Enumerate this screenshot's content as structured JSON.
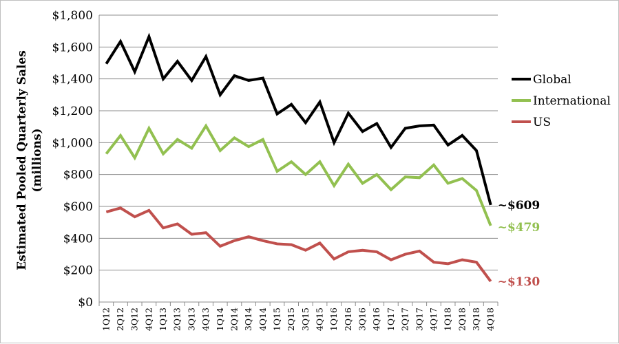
{
  "chart_data": {
    "type": "line",
    "title": "",
    "xlabel": "",
    "ylabel": "Estimated Pooled Quarterly Sales",
    "ylabel_line2": "(millions)",
    "ylim": [
      0,
      1800
    ],
    "yticks": [
      0,
      200,
      400,
      600,
      800,
      1000,
      1200,
      1400,
      1600,
      1800
    ],
    "ytick_labels": [
      "$0",
      "$200",
      "$400",
      "$600",
      "$800",
      "$1,000",
      "$1,200",
      "$1,400",
      "$1,600",
      "$1,800"
    ],
    "grid": true,
    "legend_position": "right",
    "categories": [
      "1Q12",
      "2Q12",
      "3Q12",
      "4Q12",
      "1Q13",
      "2Q13",
      "3Q13",
      "4Q13",
      "1Q14",
      "2Q14",
      "3Q14",
      "4Q14",
      "1Q15",
      "2Q15",
      "3Q15",
      "4Q15",
      "1Q16",
      "2Q16",
      "3Q16",
      "4Q16",
      "1Q17",
      "2Q17",
      "3Q17",
      "4Q17",
      "1Q18",
      "2Q18",
      "3Q18",
      "4Q18"
    ],
    "series": [
      {
        "name": "Global",
        "color": "#000000",
        "values": [
          1495,
          1635,
          1445,
          1665,
          1400,
          1510,
          1390,
          1540,
          1300,
          1420,
          1390,
          1405,
          1180,
          1240,
          1125,
          1255,
          1000,
          1185,
          1070,
          1120,
          970,
          1090,
          1105,
          1110,
          985,
          1045,
          950,
          609
        ],
        "end_label": "~$609"
      },
      {
        "name": "International",
        "color": "#92c050",
        "values": [
          930,
          1045,
          905,
          1090,
          930,
          1020,
          965,
          1105,
          950,
          1030,
          975,
          1020,
          820,
          880,
          800,
          880,
          730,
          865,
          745,
          800,
          705,
          785,
          780,
          860,
          745,
          775,
          700,
          479
        ],
        "end_label": "~$479"
      },
      {
        "name": "US",
        "color": "#c0504d",
        "values": [
          565,
          590,
          535,
          575,
          465,
          490,
          425,
          435,
          350,
          385,
          410,
          385,
          365,
          360,
          325,
          370,
          270,
          315,
          325,
          315,
          265,
          300,
          320,
          250,
          240,
          265,
          250,
          130
        ],
        "end_label": "~$130"
      }
    ]
  }
}
